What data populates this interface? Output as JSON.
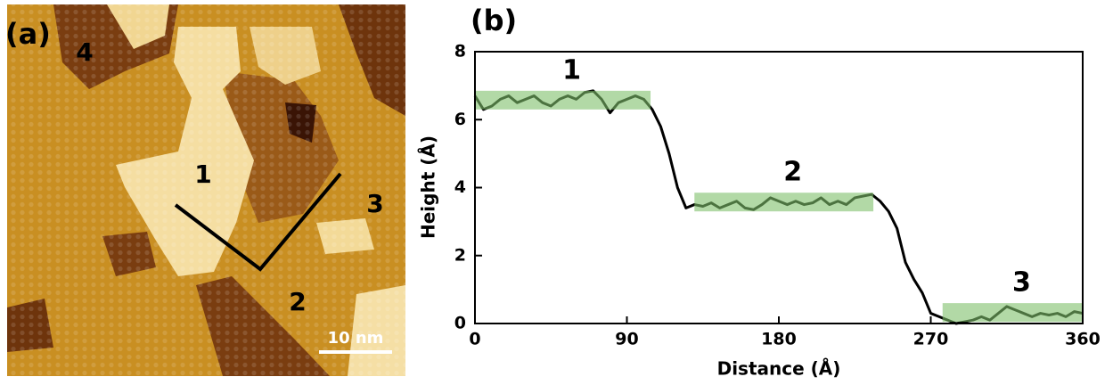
{
  "image": {
    "panel_label": "(a)",
    "region_labels": [
      "4",
      "1",
      "3",
      "2"
    ],
    "scale_bar": "10 nm"
  },
  "chart_data": {
    "type": "line",
    "panel_label": "(b)",
    "x_label": "Distance (Å)",
    "y_label": "Height (Å)",
    "x": [
      0,
      5,
      10,
      15,
      20,
      25,
      30,
      35,
      40,
      45,
      50,
      55,
      60,
      65,
      70,
      75,
      80,
      85,
      90,
      95,
      100,
      105,
      110,
      115,
      120,
      125,
      130,
      135,
      140,
      145,
      150,
      155,
      160,
      165,
      170,
      175,
      180,
      185,
      190,
      195,
      200,
      205,
      210,
      215,
      220,
      225,
      230,
      235,
      240,
      245,
      250,
      255,
      260,
      265,
      270,
      275,
      280,
      285,
      290,
      295,
      300,
      305,
      310,
      315,
      320,
      325,
      330,
      335,
      340,
      345,
      350,
      355,
      360
    ],
    "series": [
      {
        "color": "#000000",
        "values": [
          6.7,
          6.3,
          6.4,
          6.6,
          6.7,
          6.5,
          6.6,
          6.7,
          6.5,
          6.4,
          6.6,
          6.7,
          6.6,
          6.8,
          6.85,
          6.6,
          6.2,
          6.5,
          6.6,
          6.7,
          6.6,
          6.3,
          5.8,
          5.0,
          4.0,
          3.4,
          3.5,
          3.45,
          3.55,
          3.4,
          3.5,
          3.6,
          3.4,
          3.35,
          3.5,
          3.7,
          3.6,
          3.5,
          3.6,
          3.5,
          3.55,
          3.7,
          3.5,
          3.6,
          3.5,
          3.7,
          3.75,
          3.8,
          3.6,
          3.3,
          2.8,
          1.8,
          1.3,
          0.9,
          0.3,
          0.2,
          0.1,
          0.0,
          0.05,
          0.1,
          0.2,
          0.1,
          0.3,
          0.5,
          0.4,
          0.3,
          0.2,
          0.3,
          0.25,
          0.3,
          0.2,
          0.35,
          0.3
        ]
      }
    ],
    "highlights": [
      {
        "label": "1",
        "x": [
          0,
          104
        ],
        "y": [
          6.3,
          6.85
        ]
      },
      {
        "label": "2",
        "x": [
          130,
          236
        ],
        "y": [
          3.3,
          3.85
        ]
      },
      {
        "label": "3",
        "x": [
          277,
          360
        ],
        "y": [
          0.05,
          0.6
        ]
      }
    ],
    "highlight_color": "#7fbf6a",
    "xlim": [
      0,
      360
    ],
    "ylim": [
      0,
      8
    ],
    "xticks": [
      0,
      90,
      180,
      270,
      360
    ],
    "yticks": [
      0,
      2,
      4,
      6,
      8
    ]
  }
}
